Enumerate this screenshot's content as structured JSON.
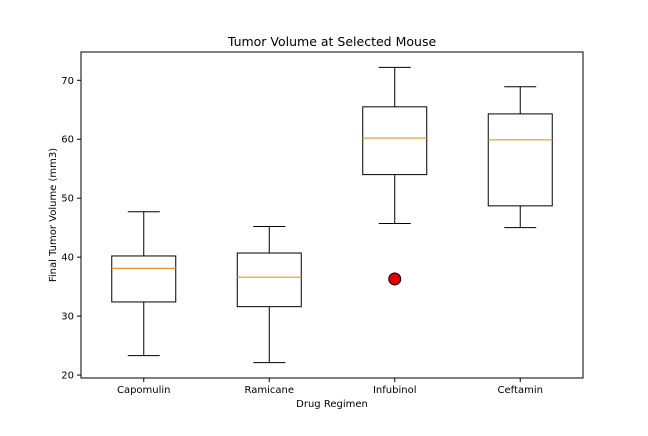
{
  "chart_data": {
    "type": "boxplot",
    "title": "Tumor Volume at Selected Mouse",
    "xlabel": "Drug Regimen",
    "ylabel": "Final Tumor Volume (mm3)",
    "ylim": [
      19.5,
      74.8
    ],
    "yticks": [
      20,
      30,
      40,
      50,
      60,
      70
    ],
    "grid": false,
    "categories": [
      "Capomulin",
      "Ramicane",
      "Infubinol",
      "Ceftamin"
    ],
    "boxes": [
      {
        "whisker_low": 23.3,
        "q1": 32.4,
        "median": 38.1,
        "q3": 40.2,
        "whisker_high": 47.7,
        "outliers": []
      },
      {
        "whisker_low": 22.1,
        "q1": 31.6,
        "median": 36.6,
        "q3": 40.7,
        "whisker_high": 45.2,
        "outliers": []
      },
      {
        "whisker_low": 45.7,
        "q1": 54.0,
        "median": 60.2,
        "q3": 65.5,
        "whisker_high": 72.2,
        "outliers": [
          36.3
        ]
      },
      {
        "whisker_low": 45.0,
        "q1": 48.7,
        "median": 59.9,
        "q3": 64.3,
        "whisker_high": 68.9,
        "outliers": []
      }
    ],
    "colors": {
      "box": "#000000",
      "median": "#e8952c",
      "outlier_fill": "#e00000",
      "outlier_edge": "#000000"
    }
  }
}
